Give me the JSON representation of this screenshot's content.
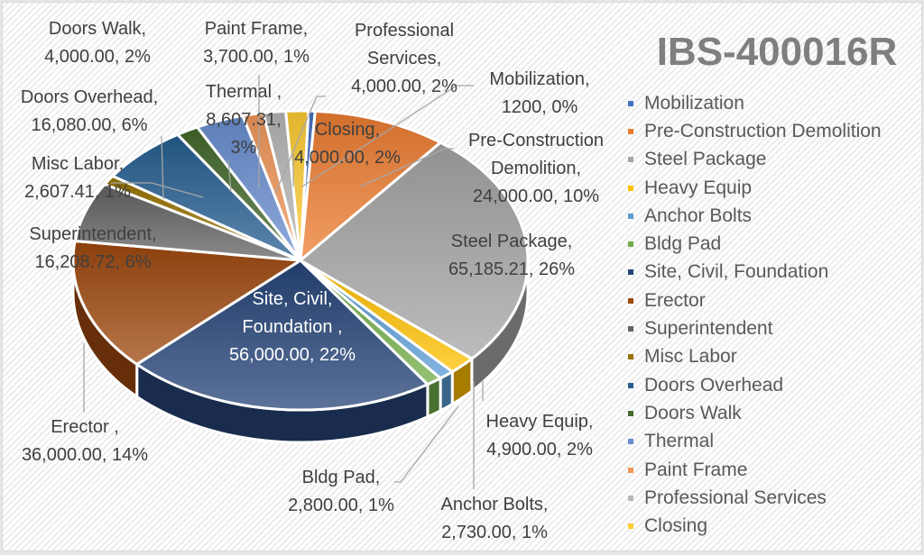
{
  "chart_data": {
    "type": "pie",
    "variant": "3d-pie",
    "title": "IBS-400016R",
    "legend_position": "right",
    "categories": [
      "Mobilization",
      "Pre-Construction Demolition",
      "Steel Package",
      "Heavy Equip",
      "Anchor Bolts",
      "Bldg Pad",
      "Site, Civil, Foundation",
      "Erector",
      "Superintendent",
      "Misc Labor",
      "Doors Overhead",
      "Doors Walk",
      "Thermal",
      "Paint Frame",
      "Professional Services",
      "Closing"
    ],
    "values": [
      1200,
      24000.0,
      65185.21,
      4900.0,
      2730.0,
      2800.0,
      56000.0,
      36000.0,
      16208.72,
      2607.41,
      16080.0,
      4000.0,
      8607.31,
      3700.0,
      4000.0,
      4000.0
    ],
    "percentages": [
      "0%",
      "10%",
      "26%",
      "2%",
      "1%",
      "1%",
      "22%",
      "14%",
      "6%",
      "1%",
      "6%",
      "2%",
      "3%",
      "1%",
      "2%",
      "2%"
    ],
    "colors": [
      "#4472c4",
      "#ed7d31",
      "#a5a5a5",
      "#ffc000",
      "#5b9bd5",
      "#70ad47",
      "#264478",
      "#9e480e",
      "#636363",
      "#997300",
      "#255e91",
      "#43682b",
      "#698ed0",
      "#f1975a",
      "#b7b7b7",
      "#ffcd33"
    ],
    "data_labels": [
      "Mobilization,\n1200, 0%",
      "Pre-Construction\nDemolition,\n24,000.00, 10%",
      "Steel Package,\n65,185.21, 26%",
      "Heavy Equip,\n4,900.00, 2%",
      "Anchor Bolts,\n2,730.00, 1%",
      "Bldg Pad,\n2,800.00, 1%",
      "Site, Civil,\nFoundation ,\n56,000.00, 22%",
      "Erector ,\n36,000.00, 14%",
      "Superintendent,\n16,208.72, 6%",
      "Misc Labor,\n2,607.41, 1%",
      "Doors Overhead,\n16,080.00, 6%",
      "Doors Walk,\n4,000.00, 2%",
      "Thermal ,\n8,607.31,\n3%",
      "Paint Frame,\n3,700.00, 1%",
      "Professional\nServices,\n4,000.00, 2%",
      "Closing,\n4,000.00, 2%"
    ]
  },
  "title": "IBS-400016R",
  "legend": {
    "items": [
      {
        "label": "Mobilization",
        "color": "#4472c4"
      },
      {
        "label": "Pre-Construction Demolition",
        "color": "#ed7d31"
      },
      {
        "label": "Steel Package",
        "color": "#a5a5a5"
      },
      {
        "label": "Heavy Equip",
        "color": "#ffc000"
      },
      {
        "label": "Anchor Bolts",
        "color": "#5b9bd5"
      },
      {
        "label": "Bldg Pad",
        "color": "#70ad47"
      },
      {
        "label": "Site, Civil, Foundation",
        "color": "#264478"
      },
      {
        "label": "Erector",
        "color": "#9e480e"
      },
      {
        "label": "Superintendent",
        "color": "#636363"
      },
      {
        "label": "Misc Labor",
        "color": "#997300"
      },
      {
        "label": "Doors Overhead",
        "color": "#255e91"
      },
      {
        "label": "Doors Walk",
        "color": "#43682b"
      },
      {
        "label": "Thermal",
        "color": "#698ed0"
      },
      {
        "label": "Paint Frame",
        "color": "#f1975a"
      },
      {
        "label": "Professional Services",
        "color": "#b7b7b7"
      },
      {
        "label": "Closing",
        "color": "#ffcd33"
      }
    ]
  },
  "labels": {
    "mobilization": "Mobilization,\n1200, 0%",
    "pre_construction": "Pre-Construction\nDemolition,\n24,000.00, 10%",
    "steel": "Steel Package,\n65,185.21, 26%",
    "heavy_equip": "Heavy Equip,\n4,900.00, 2%",
    "anchor_bolts": "Anchor Bolts,\n2,730.00, 1%",
    "bldg_pad": "Bldg Pad,\n2,800.00, 1%",
    "site_civil": "Site, Civil,\nFoundation ,\n56,000.00, 22%",
    "erector": "Erector ,\n36,000.00, 14%",
    "superintendent": "Superintendent,\n16,208.72, 6%",
    "misc_labor": "Misc Labor,\n2,607.41, 1%",
    "doors_overhead": "Doors Overhead,\n16,080.00, 6%",
    "doors_walk": "Doors Walk,\n4,000.00, 2%",
    "thermal": "Thermal ,\n8,607.31,\n3%",
    "paint_frame": "Paint Frame,\n3,700.00, 1%",
    "professional_services": "Professional\nServices,\n4,000.00, 2%",
    "closing": "Closing,\n4,000.00, 2%"
  }
}
